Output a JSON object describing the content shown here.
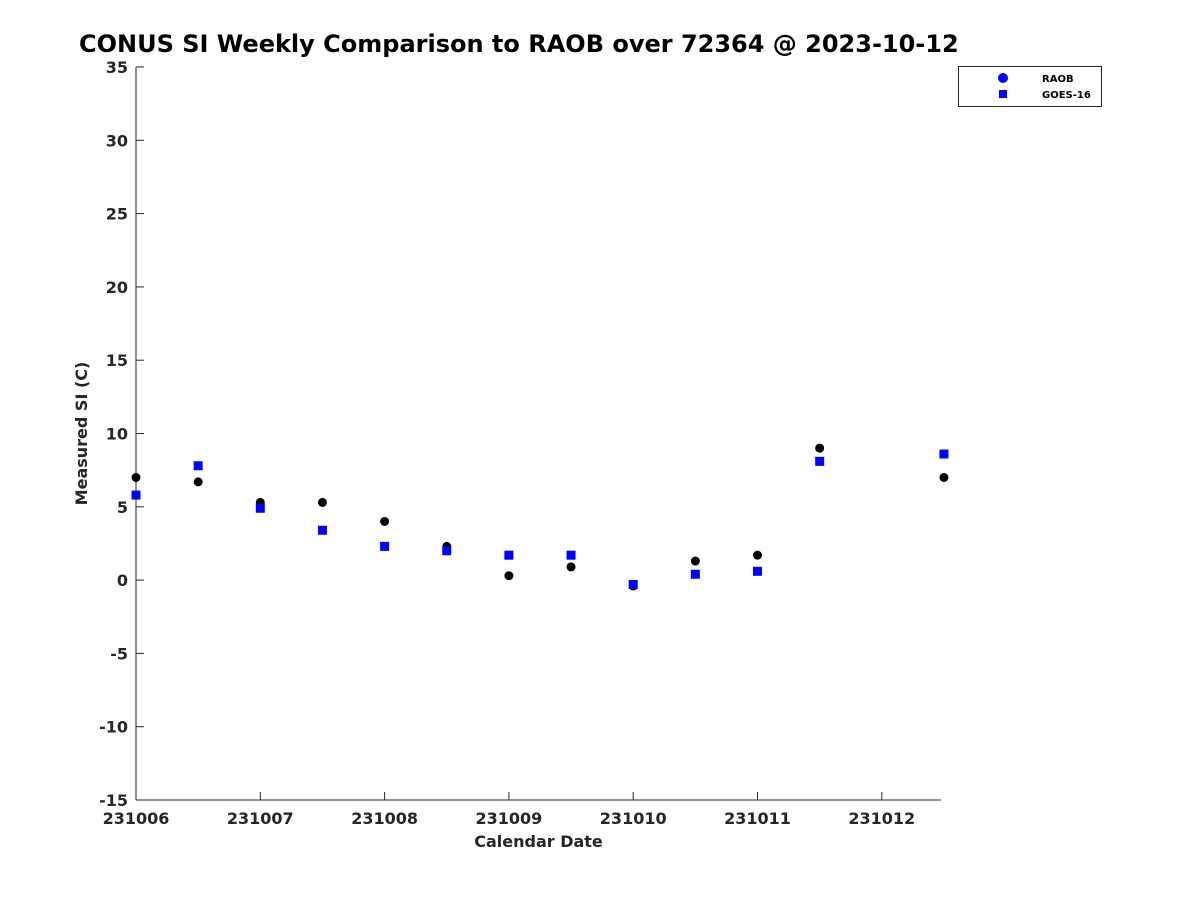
{
  "chart_data": {
    "type": "scatter",
    "title": "CONUS SI Weekly Comparison to RAOB over 72364 @ 2023-10-12",
    "xlabel": "Calendar Date",
    "ylabel": "Measured SI (C)",
    "ylim": [
      -15,
      35
    ],
    "yticks": [
      35,
      30,
      25,
      20,
      15,
      10,
      5,
      0,
      -5,
      -10,
      -15
    ],
    "xticks": [
      "231006",
      "231007",
      "231008",
      "231009",
      "231010",
      "231011",
      "231012"
    ],
    "x_categories": [
      "231006",
      "231006.5",
      "231007",
      "231007.5",
      "231008",
      "231008.5",
      "231009",
      "231009.5",
      "231010",
      "231010.5",
      "231011",
      "231011.5",
      "231012.5"
    ],
    "grid": false,
    "legend_position": "top-right",
    "series": [
      {
        "name": "RAOB",
        "marker": "circle",
        "color": "#000000",
        "legend_color": "#0000ff",
        "x": [
          "231006",
          "231006.5",
          "231007",
          "231007.5",
          "231008",
          "231008.5",
          "231009",
          "231009.5",
          "231010",
          "231010.5",
          "231011",
          "231011.5",
          "231012.5"
        ],
        "values": [
          7.0,
          6.7,
          5.3,
          5.3,
          4.0,
          2.3,
          0.3,
          0.9,
          -0.4,
          1.3,
          1.7,
          9.0,
          7.0
        ]
      },
      {
        "name": "GOES-16",
        "marker": "square",
        "color": "#0000ff",
        "legend_color": "#0000ff",
        "x": [
          "231006",
          "231006.5",
          "231007",
          "231007.5",
          "231008",
          "231008.5",
          "231009",
          "231009.5",
          "231010",
          "231010.5",
          "231011",
          "231011.5",
          "231012.5"
        ],
        "values": [
          5.8,
          7.8,
          4.9,
          3.4,
          2.3,
          2.0,
          1.7,
          1.7,
          -0.3,
          0.4,
          0.6,
          8.1,
          8.6
        ]
      }
    ]
  }
}
